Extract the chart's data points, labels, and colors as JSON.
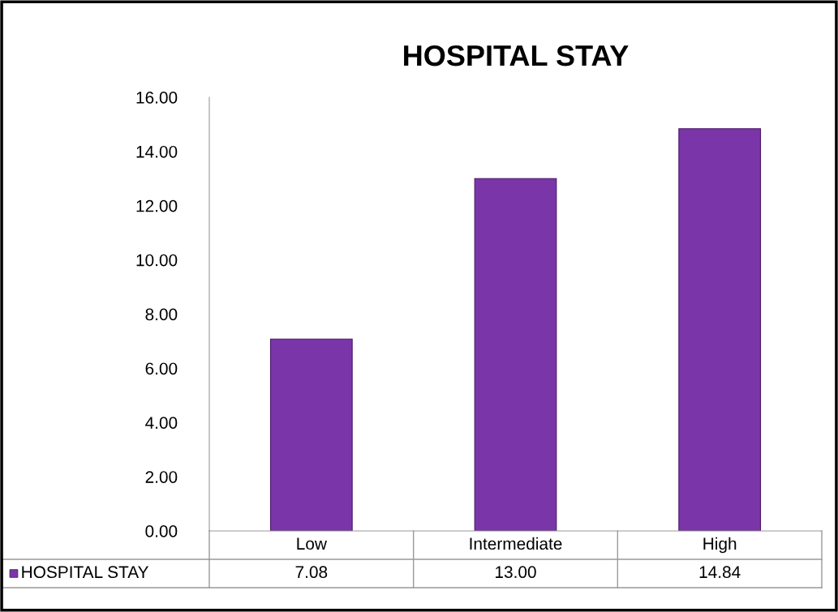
{
  "chart_data": {
    "type": "bar",
    "title": "HOSPITAL STAY",
    "categories": [
      "Low",
      "Intermediate",
      "High"
    ],
    "series": [
      {
        "name": "HOSPITAL STAY",
        "color": "#7a35a8",
        "values": [
          7.08,
          13.0,
          14.84
        ],
        "value_labels": [
          "7.08",
          "13.00",
          "14.84"
        ]
      }
    ],
    "ylim": [
      0,
      16
    ],
    "yticks": [
      {
        "value": 0,
        "label": "0.00"
      },
      {
        "value": 2,
        "label": "2.00"
      },
      {
        "value": 4,
        "label": "4.00"
      },
      {
        "value": 6,
        "label": "6.00"
      },
      {
        "value": 8,
        "label": "8.00"
      },
      {
        "value": 10,
        "label": "10.00"
      },
      {
        "value": 12,
        "label": "12.00"
      },
      {
        "value": 14,
        "label": "14.00"
      },
      {
        "value": 16,
        "label": "16.00"
      }
    ],
    "grid": false,
    "legend": "bottom"
  }
}
